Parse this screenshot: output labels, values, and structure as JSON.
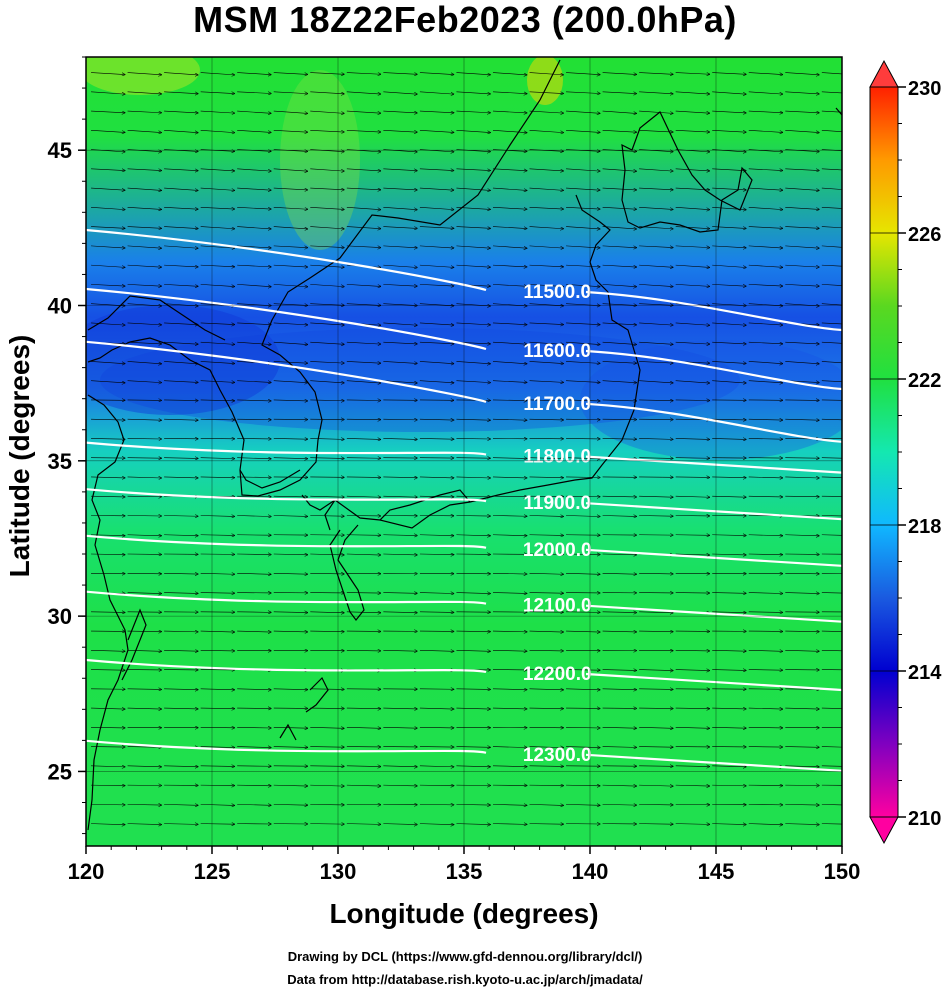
{
  "title": "MSM 18Z22Feb2023 (200.0hPa)",
  "x_axis": {
    "label": "Longitude (degrees)",
    "range": [
      120,
      150
    ],
    "ticks": [
      "120",
      "125",
      "130",
      "135",
      "140",
      "145",
      "150"
    ]
  },
  "y_axis": {
    "label": "Latitude  (degrees)",
    "range": [
      22.6,
      48
    ],
    "ticks": [
      "25",
      "30",
      "35",
      "40",
      "45"
    ]
  },
  "colorbar": {
    "min": 210,
    "max": 230,
    "ticks": [
      "210",
      "214",
      "218",
      "222",
      "226",
      "230"
    ],
    "extend": "both"
  },
  "contours": {
    "color": "#ffffff",
    "levels": [
      {
        "label": "11500.0",
        "lat": 40.5
      },
      {
        "label": "11600.0",
        "lat": 38.6
      },
      {
        "label": "11700.0",
        "lat": 36.9
      },
      {
        "label": "11800.0",
        "lat": 35.2
      },
      {
        "label": "11900.0",
        "lat": 33.7
      },
      {
        "label": "12000.0",
        "lat": 32.2
      },
      {
        "label": "12100.0",
        "lat": 30.4
      },
      {
        "label": "12200.0",
        "lat": 28.2
      },
      {
        "label": "12300.0",
        "lat": 25.6
      }
    ]
  },
  "field": {
    "type": "temperature shading with wind vectors and geopotential height contours",
    "colormap": [
      "#ff00a0",
      "#8000c0",
      "#0000d0",
      "#1a5ae0",
      "#10b8ff",
      "#14e8b0",
      "#20e040",
      "#5ad820",
      "#e6e600",
      "#ff9a00",
      "#ff2000",
      "#ff3c3c"
    ]
  },
  "credits": {
    "line1": "Drawing by DCL (https://www.gfd-dennou.org/library/dcl/)",
    "line2": "Data from http://database.rish.kyoto-u.ac.jp/arch/jmadata/"
  }
}
